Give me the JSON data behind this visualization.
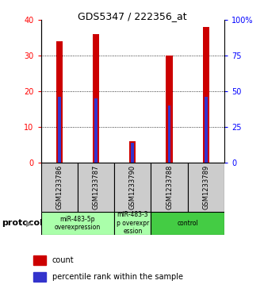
{
  "title": "GDS5347 / 222356_at",
  "samples": [
    "GSM1233786",
    "GSM1233787",
    "GSM1233790",
    "GSM1233788",
    "GSM1233789"
  ],
  "count_values": [
    34,
    36,
    6,
    30,
    38
  ],
  "percentile_values": [
    46.25,
    45.0,
    13.75,
    40.0,
    46.25
  ],
  "ylim_left": [
    0,
    40
  ],
  "ylim_right": [
    0,
    100
  ],
  "yticks_left": [
    0,
    10,
    20,
    30,
    40
  ],
  "yticks_right": [
    0,
    25,
    50,
    75,
    100
  ],
  "yticklabels_right": [
    "0",
    "25",
    "50",
    "75",
    "100%"
  ],
  "bar_color": "#cc0000",
  "percentile_color": "#3333cc",
  "protocol_groups": [
    {
      "label": "miR-483-5p\noverexpression",
      "start": 0,
      "end": 2,
      "color": "#aaffaa"
    },
    {
      "label": "miR-483-3\np overexpr\nession",
      "start": 2,
      "end": 3,
      "color": "#aaffaa"
    },
    {
      "label": "control",
      "start": 3,
      "end": 5,
      "color": "#44cc44"
    }
  ],
  "legend_count_label": "count",
  "legend_percentile_label": "percentile rank within the sample",
  "bar_width": 0.18,
  "percentile_bar_width": 0.08
}
